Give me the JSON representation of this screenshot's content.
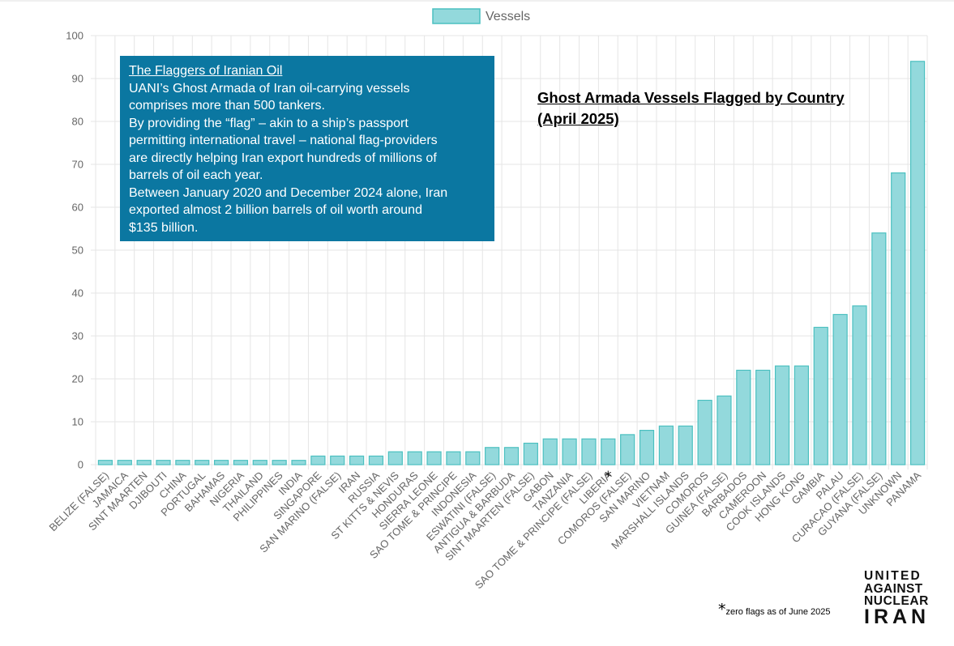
{
  "info_box": {
    "heading": "The Flaggers of Iranian Oil",
    "lines": [
      "UANI’s Ghost Armada of Iran oil-carrying vessels",
      "comprises more than 500 tankers.",
      "By providing the “flag” – akin to a ship’s passport",
      "permitting international travel – national flag-providers",
      "are directly helping Iran export hundreds of millions of",
      "barrels of oil each year.",
      "Between January 2020 and December 2024 alone, Iran",
      "exported almost 2 billion barrels of oil worth around",
      "$135 billion."
    ]
  },
  "title": {
    "line1": "Ghost Armada Vessels Flagged by Country",
    "line2": "(April 2025)"
  },
  "footnote": {
    "marker": "*",
    "text": "zero flags as of June 2025"
  },
  "logo": {
    "line1": "UNITED",
    "line2": "AGAINST",
    "line3": "NUCLEAR",
    "line4": "IRAN"
  },
  "colors": {
    "bar_fill": "#93d9dc",
    "bar_stroke": "#4bc0c0",
    "grid": "#e5e5e5",
    "info_box": "#0b77a1"
  },
  "chart_data": {
    "type": "bar",
    "legend": "Vessels",
    "legend_position": "top-center",
    "grid": true,
    "ylim": [
      0,
      100
    ],
    "yticks": [
      0,
      10,
      20,
      30,
      40,
      50,
      60,
      70,
      80,
      90,
      100
    ],
    "categories": [
      "BELIZE (FALSE)",
      "JAMAICA",
      "SINT MAARTEN",
      "DJIBOUTI",
      "CHINA",
      "PORTUGAL",
      "BAHAMAS",
      "NIGERIA",
      "THAILAND",
      "PHILIPPINES",
      "INDIA",
      "SINGAPORE",
      "SAN MARINO (FALSE)",
      "IRAN",
      "RUSSIA",
      "ST KITTS & NEVIS",
      "HONDURAS",
      "SIERRA LEONE",
      "SAO TOME & PRINCIPE",
      "INDONESIA",
      "ESWATINI (FALSE)",
      "ANTIGUA & BARBUDA",
      "SINT MAARTEN (FALSE)",
      "GABON",
      "TANZANIA",
      "SAO TOME & PRINCIPE (FALSE)",
      "LIBERIA",
      "COMOROS (FALSE)",
      "SAN MARINO",
      "VIETNAM",
      "MARSHALL ISLANDS",
      "COMOROS",
      "GUINEA (FALSE)",
      "BARBADOS",
      "CAMEROON",
      "COOK ISLANDS",
      "HONG KONG",
      "GAMBIA",
      "PALAU",
      "CURACAO (FALSE)",
      "GUYANA (FALSE)",
      "UNKNOWN",
      "PANAMA"
    ],
    "values": [
      1,
      1,
      1,
      1,
      1,
      1,
      1,
      1,
      1,
      1,
      1,
      2,
      2,
      2,
      2,
      3,
      3,
      3,
      3,
      3,
      4,
      4,
      5,
      6,
      6,
      6,
      6,
      7,
      8,
      9,
      9,
      15,
      16,
      22,
      22,
      23,
      23,
      32,
      35,
      37,
      54,
      68,
      94
    ],
    "marked_category": "LIBERIA"
  }
}
